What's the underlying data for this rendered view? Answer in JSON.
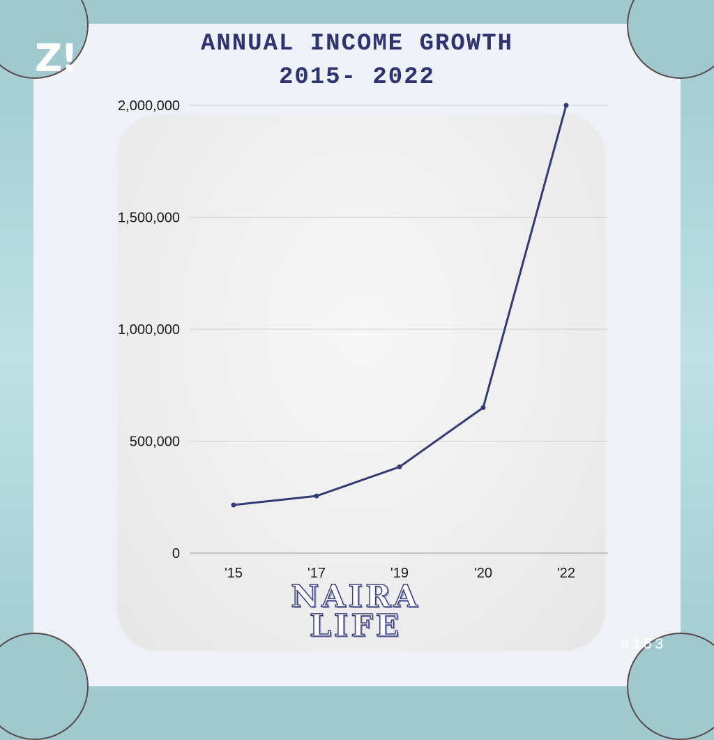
{
  "header": {
    "logo": "Z!",
    "title_line1": "ANNUAL INCOME GROWTH",
    "title_line2": "2015- 2022"
  },
  "footer": {
    "brand_line1": "NAIRA",
    "brand_line2": "LIFE",
    "issue": "#153"
  },
  "colors": {
    "line": "#343a73",
    "title": "#2f3470",
    "background": "#9fc9cf"
  },
  "chart_data": {
    "type": "line",
    "categories": [
      "'15",
      "'17",
      "'19",
      "'20",
      "'22"
    ],
    "values": [
      215000,
      255000,
      385000,
      650000,
      2000000
    ],
    "ylim": [
      0,
      2000000
    ],
    "yticks": [
      0,
      500000,
      1000000,
      1500000,
      2000000
    ],
    "ytick_labels": [
      "0",
      "500,000",
      "1,000,000",
      "1,500,000",
      "2,000,000"
    ],
    "grid": true,
    "title": "ANNUAL INCOME GROWTH 2015- 2022",
    "xlabel": "",
    "ylabel": ""
  }
}
